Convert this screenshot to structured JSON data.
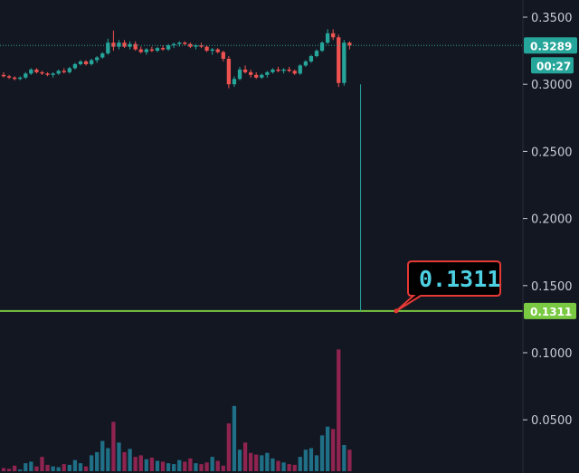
{
  "colors": {
    "background": "#131722",
    "up": "#26a69a",
    "down": "#ef5350",
    "vol_up": "#1f6f86",
    "vol_down": "#8e244f",
    "current_line": "#26a69a",
    "level_line": "#7ac943",
    "callout_border": "#e53935",
    "callout_text": "#4dd0e1",
    "tick_text": "#c9cdd6"
  },
  "chart_data": {
    "type": "candlestick",
    "price_axis": {
      "ticks": [
        "0.3500",
        "0.3000",
        "0.2500",
        "0.2000",
        "0.1500",
        "0.1000",
        "0.0500"
      ],
      "tick_values": [
        0.35,
        0.3,
        0.25,
        0.2,
        0.15,
        0.1,
        0.05
      ]
    },
    "current_price": {
      "value": 0.3289,
      "label": "0.3289",
      "countdown": "00:27"
    },
    "level": {
      "value": 0.1311,
      "label": "0.1311",
      "callout": "0.1311"
    },
    "candles": [
      [
        0.307,
        0.309,
        0.305,
        0.306
      ],
      [
        0.306,
        0.307,
        0.304,
        0.305
      ],
      [
        0.305,
        0.306,
        0.303,
        0.304
      ],
      [
        0.304,
        0.306,
        0.303,
        0.305
      ],
      [
        0.305,
        0.309,
        0.304,
        0.308
      ],
      [
        0.308,
        0.312,
        0.307,
        0.311
      ],
      [
        0.311,
        0.312,
        0.308,
        0.309
      ],
      [
        0.309,
        0.31,
        0.307,
        0.308
      ],
      [
        0.308,
        0.309,
        0.306,
        0.307
      ],
      [
        0.307,
        0.309,
        0.305,
        0.308
      ],
      [
        0.308,
        0.311,
        0.307,
        0.31
      ],
      [
        0.31,
        0.312,
        0.308,
        0.309
      ],
      [
        0.309,
        0.313,
        0.308,
        0.312
      ],
      [
        0.312,
        0.316,
        0.311,
        0.315
      ],
      [
        0.315,
        0.318,
        0.314,
        0.317
      ],
      [
        0.317,
        0.318,
        0.314,
        0.315
      ],
      [
        0.315,
        0.319,
        0.314,
        0.318
      ],
      [
        0.318,
        0.321,
        0.316,
        0.32
      ],
      [
        0.32,
        0.324,
        0.319,
        0.323
      ],
      [
        0.323,
        0.334,
        0.322,
        0.331
      ],
      [
        0.331,
        0.34,
        0.325,
        0.328
      ],
      [
        0.328,
        0.333,
        0.326,
        0.331
      ],
      [
        0.331,
        0.333,
        0.327,
        0.328
      ],
      [
        0.328,
        0.332,
        0.326,
        0.33
      ],
      [
        0.33,
        0.332,
        0.325,
        0.326
      ],
      [
        0.326,
        0.328,
        0.323,
        0.324
      ],
      [
        0.324,
        0.327,
        0.322,
        0.326
      ],
      [
        0.326,
        0.328,
        0.324,
        0.325
      ],
      [
        0.325,
        0.328,
        0.324,
        0.327
      ],
      [
        0.327,
        0.329,
        0.325,
        0.326
      ],
      [
        0.326,
        0.33,
        0.325,
        0.329
      ],
      [
        0.329,
        0.331,
        0.327,
        0.33
      ],
      [
        0.33,
        0.332,
        0.328,
        0.331
      ],
      [
        0.331,
        0.332,
        0.329,
        0.33
      ],
      [
        0.33,
        0.331,
        0.327,
        0.328
      ],
      [
        0.328,
        0.33,
        0.326,
        0.329
      ],
      [
        0.329,
        0.331,
        0.327,
        0.328
      ],
      [
        0.328,
        0.329,
        0.324,
        0.325
      ],
      [
        0.325,
        0.327,
        0.322,
        0.326
      ],
      [
        0.326,
        0.327,
        0.323,
        0.324
      ],
      [
        0.324,
        0.325,
        0.317,
        0.319
      ],
      [
        0.319,
        0.321,
        0.297,
        0.3
      ],
      [
        0.3,
        0.306,
        0.298,
        0.304
      ],
      [
        0.304,
        0.313,
        0.303,
        0.311
      ],
      [
        0.311,
        0.314,
        0.308,
        0.309
      ],
      [
        0.309,
        0.311,
        0.305,
        0.307
      ],
      [
        0.307,
        0.309,
        0.304,
        0.305
      ],
      [
        0.305,
        0.308,
        0.304,
        0.307
      ],
      [
        0.307,
        0.31,
        0.305,
        0.309
      ],
      [
        0.309,
        0.312,
        0.308,
        0.311
      ],
      [
        0.311,
        0.313,
        0.309,
        0.31
      ],
      [
        0.31,
        0.312,
        0.308,
        0.311
      ],
      [
        0.311,
        0.313,
        0.309,
        0.31
      ],
      [
        0.31,
        0.311,
        0.307,
        0.308
      ],
      [
        0.308,
        0.315,
        0.307,
        0.314
      ],
      [
        0.314,
        0.318,
        0.313,
        0.317
      ],
      [
        0.317,
        0.322,
        0.316,
        0.321
      ],
      [
        0.321,
        0.326,
        0.32,
        0.325
      ],
      [
        0.325,
        0.332,
        0.324,
        0.331
      ],
      [
        0.331,
        0.341,
        0.33,
        0.338
      ],
      [
        0.338,
        0.341,
        0.333,
        0.335
      ],
      [
        0.335,
        0.337,
        0.298,
        0.301
      ],
      [
        0.301,
        0.333,
        0.299,
        0.331
      ],
      [
        0.331,
        0.332,
        0.326,
        0.329
      ]
    ],
    "volumes": [
      4,
      3,
      7,
      2,
      10,
      12,
      6,
      18,
      8,
      6,
      5,
      9,
      8,
      14,
      10,
      6,
      20,
      24,
      38,
      29,
      62,
      36,
      24,
      28,
      18,
      20,
      15,
      17,
      13,
      12,
      10,
      9,
      14,
      12,
      16,
      10,
      9,
      11,
      18,
      13,
      7,
      60,
      82,
      27,
      36,
      23,
      21,
      20,
      23,
      16,
      13,
      11,
      9,
      8,
      18,
      27,
      29,
      20,
      45,
      56,
      53,
      153,
      33,
      27
    ]
  }
}
